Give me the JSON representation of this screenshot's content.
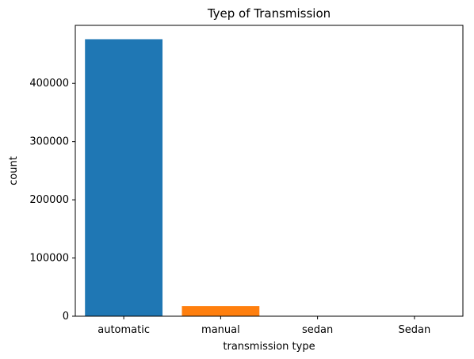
{
  "chart_data": {
    "type": "bar",
    "title": "Tyep of Transmission",
    "xlabel": "transmission type",
    "ylabel": "count",
    "categories": [
      "automatic",
      "manual",
      "sedan",
      "Sedan"
    ],
    "values": [
      475915,
      17544,
      15,
      11
    ],
    "colors": [
      "#1f77b4",
      "#ff7f0e",
      "#2ca02c",
      "#d62728"
    ],
    "ylim": [
      0,
      499711
    ],
    "yticks": [
      0,
      100000,
      200000,
      300000,
      400000
    ],
    "grid": false,
    "legend": "none"
  }
}
